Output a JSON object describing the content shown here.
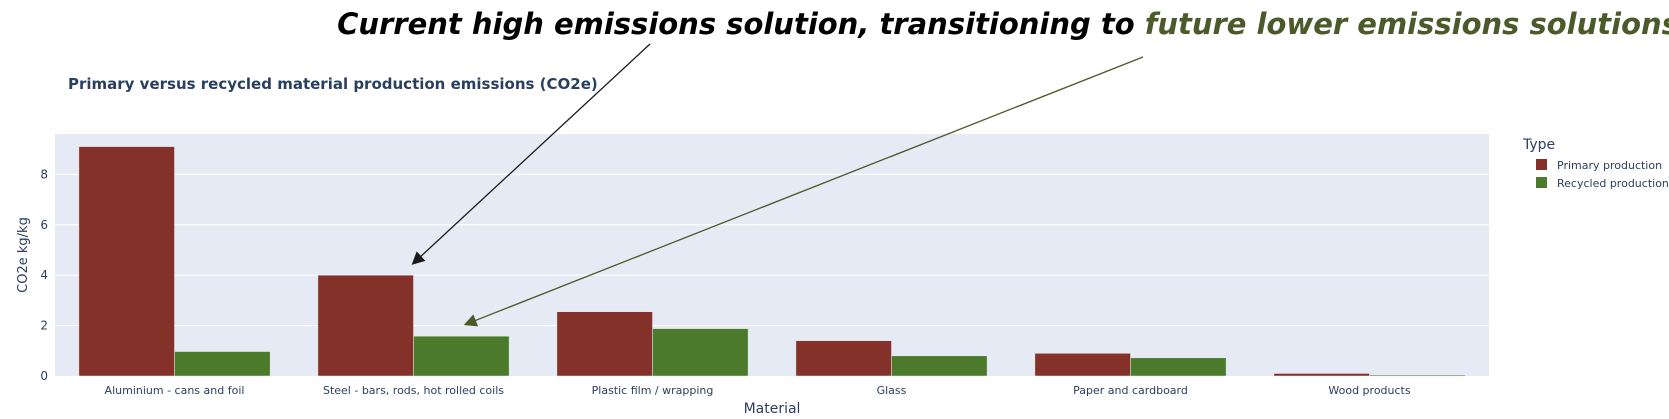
{
  "annotation": {
    "headline_part1": "Current high emissions solution, transitioning to ",
    "headline_part2": "future lower emissions solutions",
    "headline_color": "#000000",
    "highlight_color": "#4b5a2a"
  },
  "chart_data": {
    "type": "bar",
    "title": "Primary versus recycled material production emissions (CO2e)",
    "xlabel": "Material",
    "ylabel": "CO2e kg/kg",
    "ylim": [
      0,
      9.6
    ],
    "yticks": [
      0,
      2,
      4,
      6,
      8
    ],
    "grid": true,
    "legend_placement": "top-right",
    "legend_title": "Type",
    "categories": [
      "Aluminium - cans and foil",
      "Steel - bars, rods, hot rolled coils",
      "Plastic film / wrapping",
      "Glass",
      "Paper and cardboard",
      "Wood products"
    ],
    "series": [
      {
        "name": "Primary production",
        "color": "#843229",
        "values": [
          9.1,
          4.0,
          2.55,
          1.4,
          0.9,
          0.1
        ]
      },
      {
        "name": "Recycled production",
        "color": "#4b7a2b",
        "values": [
          0.97,
          1.58,
          1.88,
          0.8,
          0.72,
          0.04
        ]
      }
    ],
    "plot_background": "#e5eaf4",
    "arrows": [
      {
        "color": "#1a1a1a",
        "target": {
          "category": 1,
          "series": 0,
          "value": 4.0
        }
      },
      {
        "color": "#4b5a2a",
        "target": {
          "category": 1,
          "series": 1,
          "value": 1.58
        }
      }
    ]
  }
}
